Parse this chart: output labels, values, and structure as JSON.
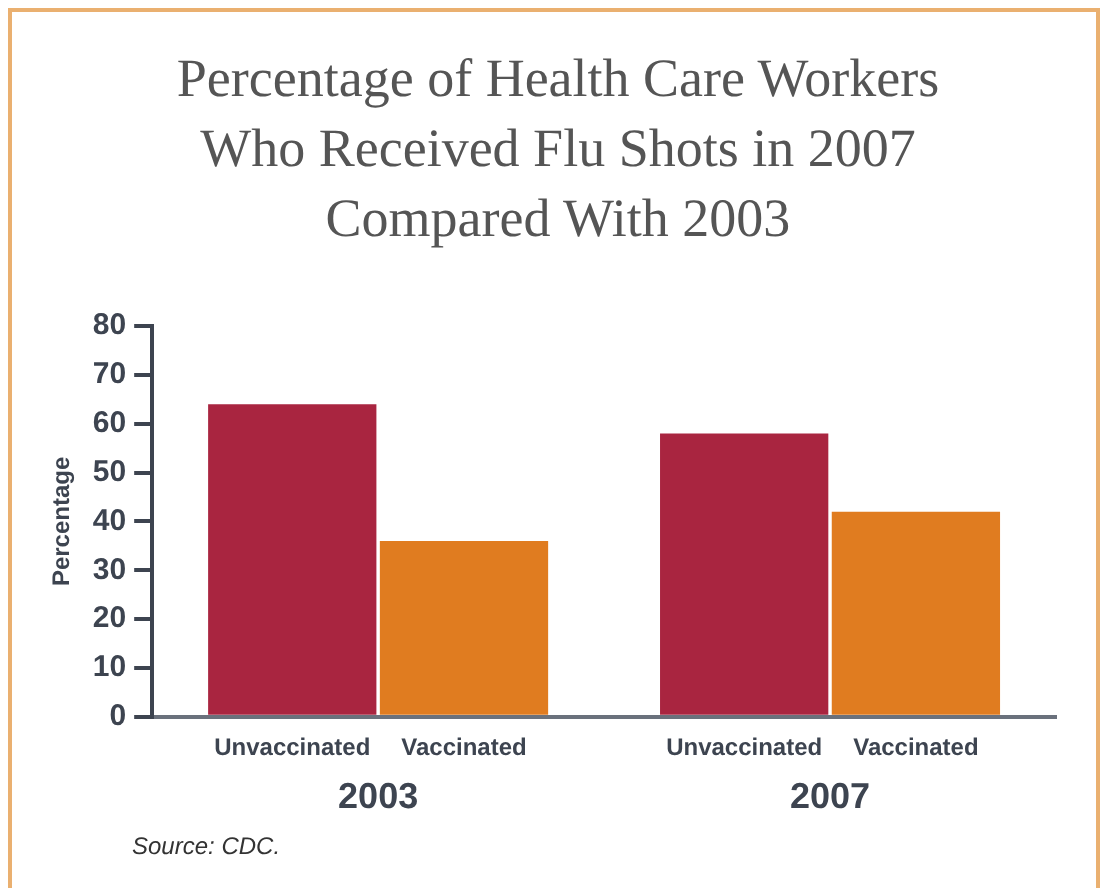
{
  "chart_data": {
    "type": "bar",
    "title": "Percentage of Health Care Workers Who Received Flu Shots in 2007 Compared With 2003",
    "ylabel": "Percentage",
    "categories": [
      "2003",
      "2007"
    ],
    "series": [
      {
        "name": "Unvaccinated",
        "color": "#a92540",
        "values": [
          64,
          58
        ]
      },
      {
        "name": "Vaccinated",
        "color": "#e07c20",
        "values": [
          36,
          42
        ]
      }
    ],
    "ylim": [
      0,
      80
    ],
    "yticks": [
      0,
      10,
      20,
      30,
      40,
      50,
      60,
      70,
      80
    ],
    "grid": false,
    "legend": false,
    "annotations": [
      "Source: CDC."
    ]
  }
}
